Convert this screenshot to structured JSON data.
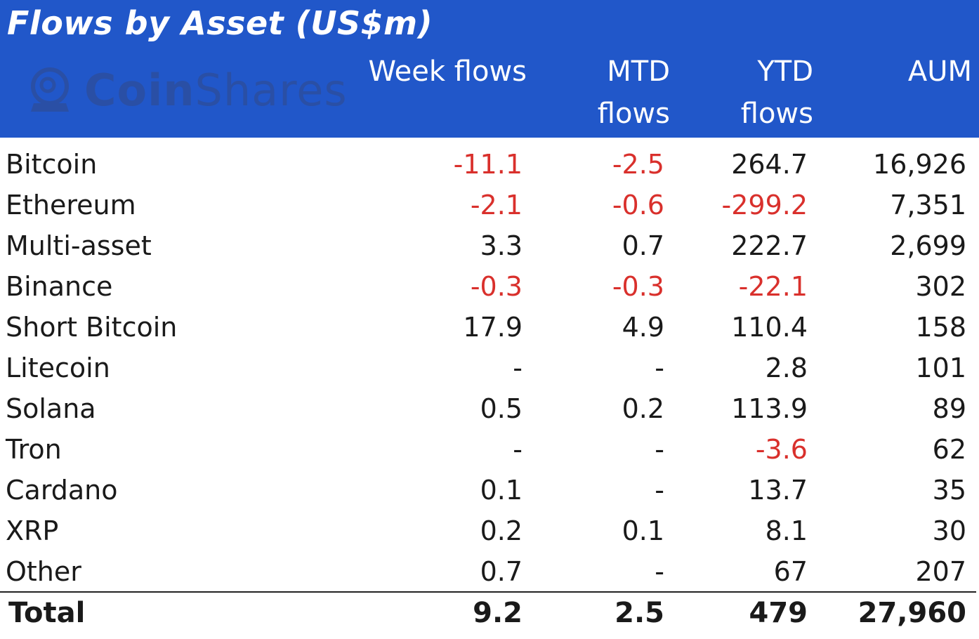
{
  "title": "Flows by Asset (US$m)",
  "logo": {
    "word_bold": "Coin",
    "word_light": "Shares"
  },
  "headers": {
    "week": [
      "",
      "Week flows"
    ],
    "mtd": [
      "MTD",
      "flows"
    ],
    "ytd": [
      "YTD",
      "flows"
    ],
    "aum": [
      "",
      "AUM"
    ]
  },
  "colors": {
    "header_bg": "#2157c9",
    "negative": "#d9302c",
    "text": "#1a1a1a"
  },
  "chart_data": {
    "type": "table",
    "title": "Flows by Asset (US$m)",
    "columns": [
      "Week flows",
      "MTD flows",
      "YTD flows",
      "AUM"
    ],
    "rows": [
      {
        "name": "Bitcoin",
        "week": "-11.1",
        "mtd": "-2.5",
        "ytd": "264.7",
        "aum": "16,926"
      },
      {
        "name": "Ethereum",
        "week": "-2.1",
        "mtd": "-0.6",
        "ytd": "-299.2",
        "aum": "7,351"
      },
      {
        "name": "Multi-asset",
        "week": "3.3",
        "mtd": "0.7",
        "ytd": "222.7",
        "aum": "2,699"
      },
      {
        "name": "Binance",
        "week": "-0.3",
        "mtd": "-0.3",
        "ytd": "-22.1",
        "aum": "302"
      },
      {
        "name": "Short Bitcoin",
        "week": "17.9",
        "mtd": "4.9",
        "ytd": "110.4",
        "aum": "158"
      },
      {
        "name": "Litecoin",
        "week": "-",
        "mtd": "-",
        "ytd": "2.8",
        "aum": "101"
      },
      {
        "name": "Solana",
        "week": "0.5",
        "mtd": "0.2",
        "ytd": "113.9",
        "aum": "89"
      },
      {
        "name": "Tron",
        "week": "-",
        "mtd": "-",
        "ytd": "-3.6",
        "aum": "62"
      },
      {
        "name": "Cardano",
        "week": "0.1",
        "mtd": "-",
        "ytd": "13.7",
        "aum": "35"
      },
      {
        "name": "XRP",
        "week": "0.2",
        "mtd": "0.1",
        "ytd": "8.1",
        "aum": "30"
      },
      {
        "name": "Other",
        "week": "0.7",
        "mtd": "-",
        "ytd": "67",
        "aum": "207"
      }
    ],
    "total": {
      "name": "Total",
      "week": "9.2",
      "mtd": "2.5",
      "ytd": "479",
      "aum": "27,960"
    }
  }
}
